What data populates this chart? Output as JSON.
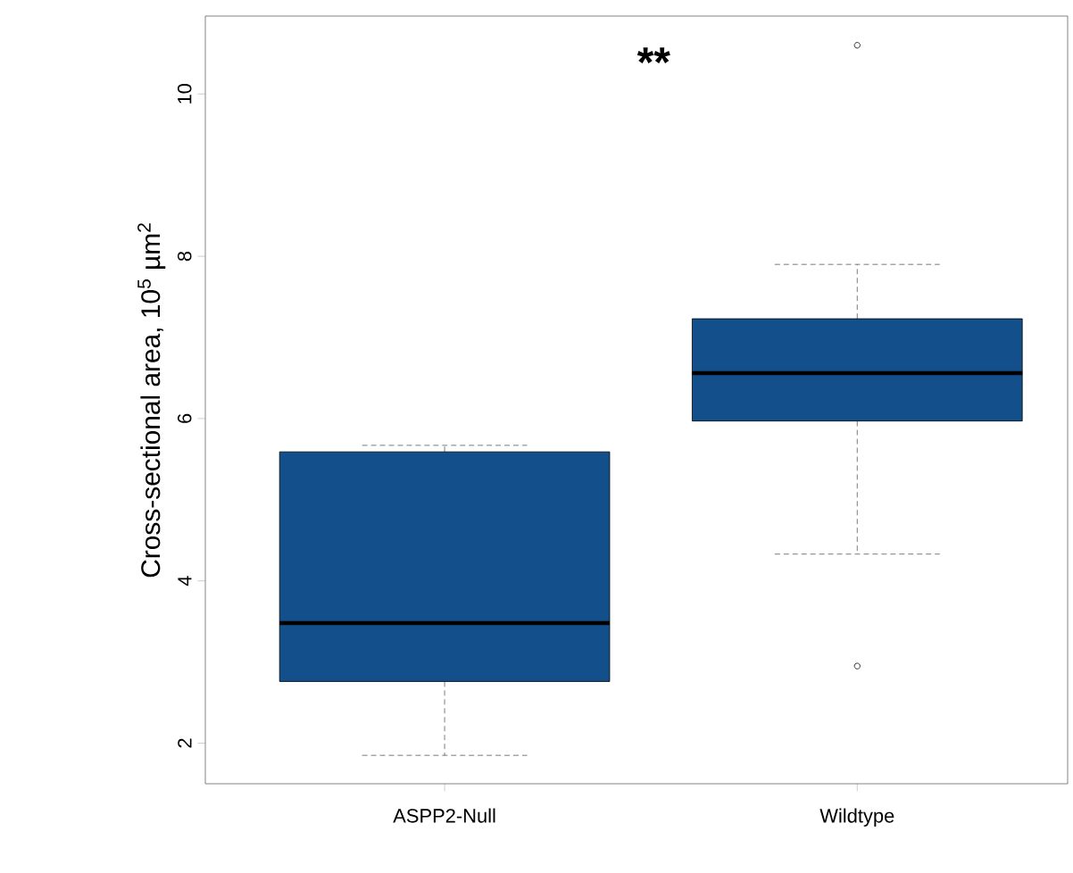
{
  "chart_data": {
    "type": "box",
    "ylabel": "Cross-sectional area, 10$^{5}$ µm$^{2}$",
    "categories": [
      "ASPP2-Null",
      "Wildtype"
    ],
    "color": "#13508b",
    "boxes": [
      {
        "low": 1.85,
        "q1": 2.76,
        "median": 3.48,
        "q3": 5.59,
        "high": 5.67
      },
      {
        "low": 4.33,
        "q1": 5.97,
        "median": 6.56,
        "q3": 7.23,
        "high": 7.9,
        "outliers": [
          10.6,
          2.95
        ]
      }
    ],
    "ylim": [
      1.5,
      10.96
    ],
    "yticks": [
      2,
      4,
      6,
      8,
      10
    ],
    "annotations": [
      "**"
    ],
    "grid": false
  }
}
